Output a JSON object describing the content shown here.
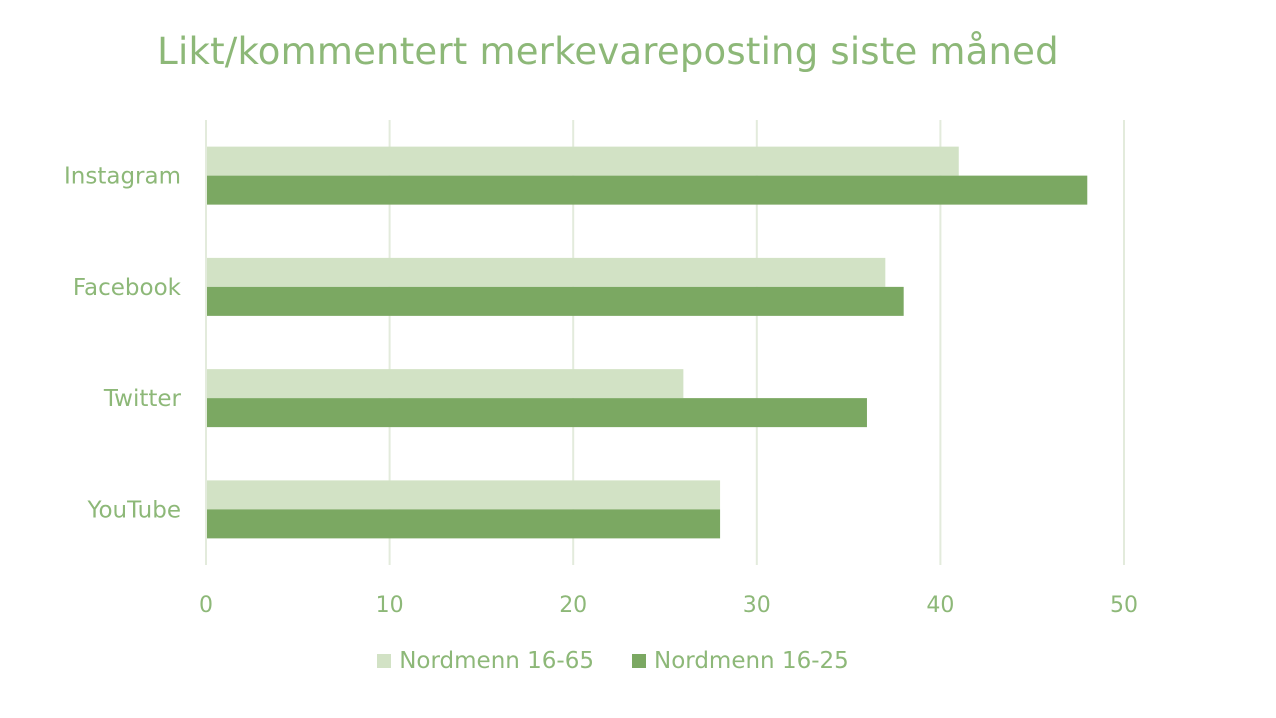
{
  "chart_data": {
    "type": "bar",
    "orientation": "horizontal",
    "title": "Likt/kommentert merkevareposting siste måned",
    "categories": [
      "Instagram",
      "Facebook",
      "Twitter",
      "YouTube"
    ],
    "series": [
      {
        "name": "Nordmenn 16-65",
        "color": "#d2e2c5",
        "values": [
          41,
          37,
          26,
          28
        ]
      },
      {
        "name": "Nordmenn 16-25",
        "color": "#7ba862",
        "values": [
          48,
          38,
          36,
          28
        ]
      }
    ],
    "xlim": [
      0,
      50
    ],
    "xticks": [
      "0",
      "10",
      "20",
      "30",
      "40",
      "50"
    ],
    "grid": true,
    "legend_position": "bottom"
  }
}
